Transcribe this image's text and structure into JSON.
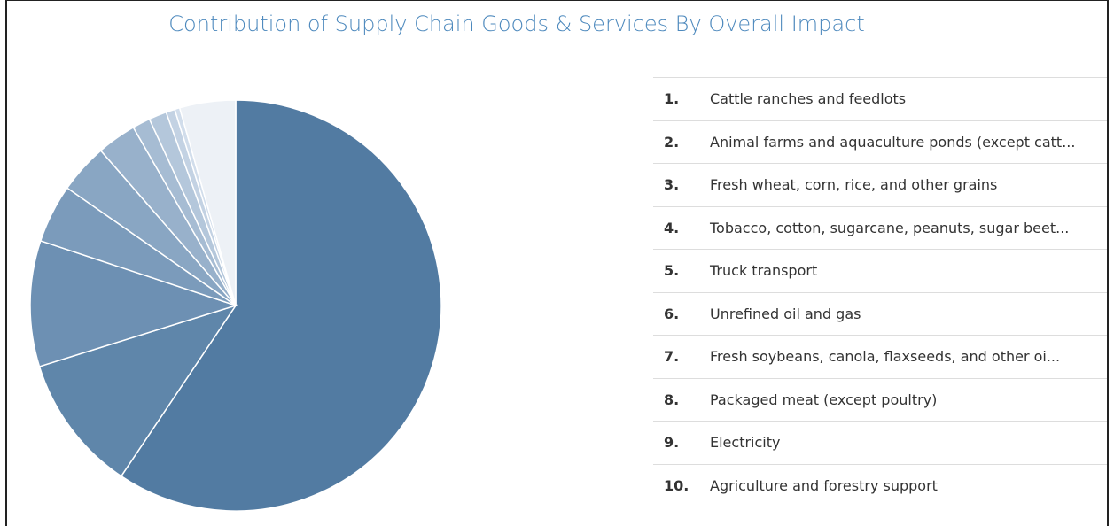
{
  "chart_data": {
    "type": "pie",
    "title": "Contribution of Supply Chain Goods & Services By Overall Impact",
    "ranks": [
      "1.",
      "2.",
      "3.",
      "4.",
      "5.",
      "6.",
      "7.",
      "8.",
      "9.",
      "10."
    ],
    "categories": [
      "Cattle ranches and feedlots",
      "Animal farms and aquaculture ponds (except catt...",
      "Fresh wheat, corn, rice, and other grains",
      "Tobacco, cotton, sugarcane, peanuts, sugar beet...",
      "Truck transport",
      "Unrefined oil and gas",
      "Fresh soybeans, canola, flaxseeds, and other oi...",
      "Packaged meat (except poultry)",
      "Electricity",
      "Agriculture and forestry support",
      null
    ],
    "values": [
      59.4,
      10.8,
      9.9,
      4.6,
      3.9,
      3.1,
      1.4,
      1.4,
      0.7,
      0.4,
      4.4
    ],
    "colors": [
      "#527ba2",
      "#5f86aa",
      "#6d90b3",
      "#7b9bbb",
      "#89a6c3",
      "#98b1cb",
      "#a6bcd3",
      "#b4c7db",
      "#c3d2e3",
      "#d1ddeb",
      "#edf1f6"
    ]
  }
}
